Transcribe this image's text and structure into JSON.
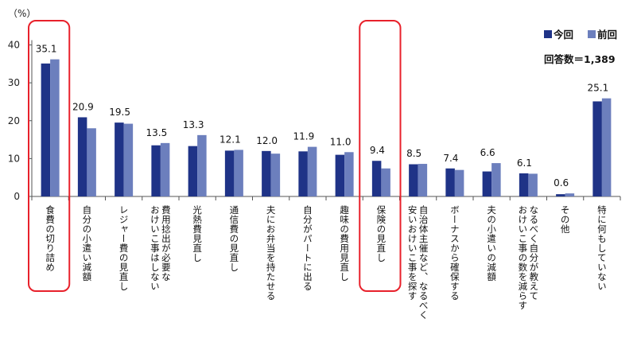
{
  "chart_data": {
    "type": "bar",
    "unit_label": "（%）",
    "ylim": [
      0,
      40
    ],
    "yticks": [
      0,
      10,
      20,
      30,
      40
    ],
    "categories": [
      [
        "食費の切り詰め"
      ],
      [
        "自分の小遣い減額"
      ],
      [
        "レジャー費の見直し"
      ],
      [
        "費用捻出が必要な",
        "おけいこ事はしない"
      ],
      [
        "光熱費見直し"
      ],
      [
        "通信費の見直し"
      ],
      [
        "夫にお弁当を持たせる"
      ],
      [
        "自分がパートに出る"
      ],
      [
        "趣味の費用見直し"
      ],
      [
        "保険の見直し"
      ],
      [
        "自治体主催など、なるべく",
        "安いおけいこ事を探す"
      ],
      [
        "ボーナスから確保する"
      ],
      [
        "夫の小遣いの減額"
      ],
      [
        "なるべく自分が教えて",
        "おけいこ事の数を減らす"
      ],
      [
        "その他"
      ],
      [
        "特に何もしていない"
      ]
    ],
    "series": [
      {
        "name": "今回",
        "color": "#1f3387",
        "values": [
          35.1,
          20.9,
          19.5,
          13.5,
          13.3,
          12.1,
          12.0,
          11.9,
          11.0,
          9.4,
          8.5,
          7.4,
          6.6,
          6.1,
          0.6,
          25.1
        ]
      },
      {
        "name": "前回",
        "color": "#6c7fbd",
        "values": [
          36.2,
          18.0,
          19.2,
          14.1,
          16.2,
          12.3,
          11.3,
          13.1,
          11.7,
          7.4,
          8.6,
          7.0,
          8.8,
          6.0,
          0.8,
          25.9
        ]
      }
    ],
    "data_labels": [
      "35.1",
      "20.9",
      "19.5",
      "13.5",
      "13.3",
      "12.1",
      "12.0",
      "11.9",
      "11.0",
      "9.4",
      "8.5",
      "7.4",
      "6.6",
      "6.1",
      "0.6",
      "25.1"
    ],
    "highlighted_categories": [
      0,
      9
    ],
    "highlight_color": "#e8212b",
    "legend_position": "top-right",
    "grid": false
  },
  "legend": {
    "total_label": "回答数＝1,389"
  }
}
